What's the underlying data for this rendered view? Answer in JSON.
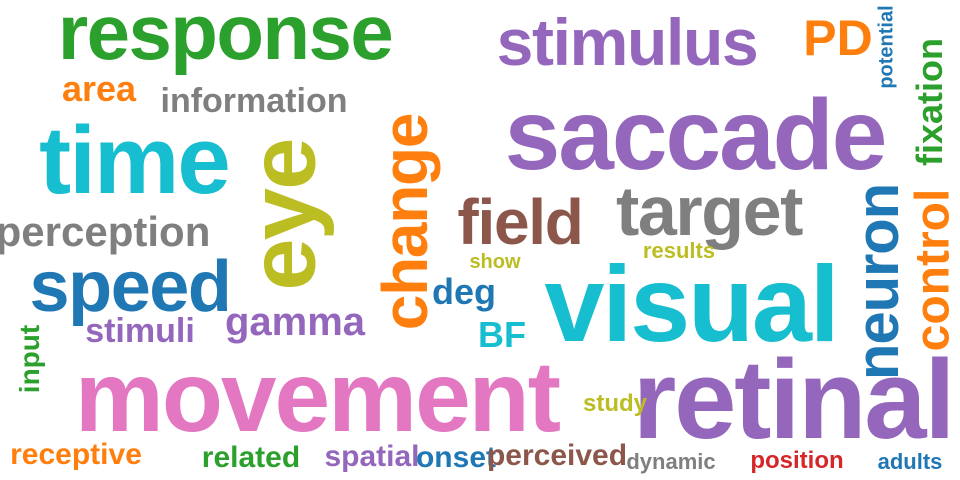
{
  "colors": {
    "green": "#2ca02c",
    "purple": "#9467bd",
    "orange": "#ff7f0e",
    "cyan": "#17becf",
    "olive": "#bcbd22",
    "gray": "#7f7f7f",
    "blue": "#1f77b4",
    "brown": "#8c564b",
    "pink": "#e377c2",
    "red": "#d62728"
  },
  "words": [
    {
      "text": "response",
      "color": "green"
    },
    {
      "text": "stimulus",
      "color": "purple"
    },
    {
      "text": "PD",
      "color": "orange"
    },
    {
      "text": "potential",
      "color": "blue"
    },
    {
      "text": "fixation",
      "color": "green"
    },
    {
      "text": "area",
      "color": "orange"
    },
    {
      "text": "information",
      "color": "gray"
    },
    {
      "text": "saccade",
      "color": "purple"
    },
    {
      "text": "time",
      "color": "cyan"
    },
    {
      "text": "eye",
      "color": "olive"
    },
    {
      "text": "change",
      "color": "orange"
    },
    {
      "text": "target",
      "color": "gray"
    },
    {
      "text": "field",
      "color": "brown"
    },
    {
      "text": "perception",
      "color": "gray"
    },
    {
      "text": "results",
      "color": "olive"
    },
    {
      "text": "neuron",
      "color": "blue"
    },
    {
      "text": "control",
      "color": "orange"
    },
    {
      "text": "show",
      "color": "olive"
    },
    {
      "text": "speed",
      "color": "blue"
    },
    {
      "text": "deg",
      "color": "blue"
    },
    {
      "text": "visual",
      "color": "cyan"
    },
    {
      "text": "gamma",
      "color": "purple"
    },
    {
      "text": "stimuli",
      "color": "purple"
    },
    {
      "text": "BF",
      "color": "cyan"
    },
    {
      "text": "input",
      "color": "green"
    },
    {
      "text": "movement",
      "color": "pink"
    },
    {
      "text": "retinal",
      "color": "purple"
    },
    {
      "text": "study",
      "color": "olive"
    },
    {
      "text": "receptive",
      "color": "orange"
    },
    {
      "text": "related",
      "color": "green"
    },
    {
      "text": "spatial",
      "color": "purple"
    },
    {
      "text": "onset",
      "color": "blue"
    },
    {
      "text": "perceived",
      "color": "brown"
    },
    {
      "text": "dynamic",
      "color": "gray"
    },
    {
      "text": "position",
      "color": "red"
    },
    {
      "text": "adults",
      "color": "blue"
    }
  ]
}
